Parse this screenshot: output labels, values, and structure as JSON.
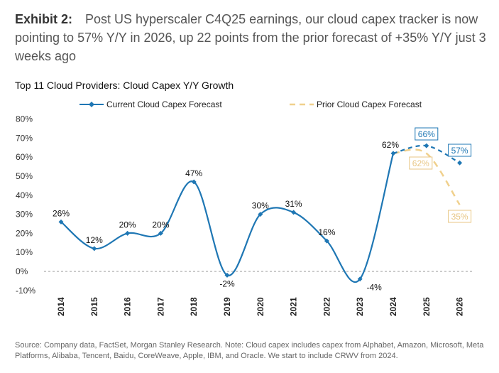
{
  "exhibit": {
    "label": "Exhibit 2:",
    "text": "Post US hyperscaler C4Q25 earnings, our cloud capex tracker is now pointing to 57% Y/Y in 2026, up 22 points from the prior forecast of +35% Y/Y just 3 weeks ago"
  },
  "source_note": "Source: Company data, FactSet, Morgan Stanley Research. Note: Cloud capex includes capex from Alphabet, Amazon, Microsoft, Meta Platforms, Alibaba, Tencent, Baidu, CoreWeave, Apple, IBM, and Oracle. We start to include CRWV from 2024.",
  "chart_data": {
    "type": "line",
    "title": "Top 11 Cloud Providers: Cloud Capex Y/Y Growth",
    "xlabel": "",
    "ylabel": "",
    "categories": [
      "2014",
      "2015",
      "2016",
      "2017",
      "2018",
      "2019",
      "2020",
      "2021",
      "2022",
      "2023",
      "2024",
      "2025",
      "2026"
    ],
    "y_ticks": [
      "-10%",
      "0%",
      "10%",
      "20%",
      "30%",
      "40%",
      "50%",
      "60%",
      "70%",
      "80%"
    ],
    "ylim": [
      -10,
      80
    ],
    "grid": false,
    "zero_line": "dashed",
    "legend_position": "top",
    "series": [
      {
        "name": "Current Cloud Capex Forecast",
        "color": "#1f77b4",
        "values": [
          26,
          12,
          20,
          20,
          47,
          -2,
          30,
          31,
          16,
          -4,
          62,
          66,
          57
        ],
        "labels": [
          "26%",
          "12%",
          "20%",
          "20%",
          "47%",
          "-2%",
          "30%",
          "31%",
          "16%",
          "-4%",
          "62%",
          "66%",
          "57%"
        ],
        "forecast_from": "2024",
        "boxed_labels": [
          "66%",
          "57%"
        ]
      },
      {
        "name": "Prior Cloud Capex Forecast",
        "color": "#f0d08c",
        "values": [
          null,
          null,
          null,
          null,
          null,
          null,
          null,
          null,
          null,
          null,
          62,
          62,
          35
        ],
        "labels": [
          "62%",
          "35%"
        ],
        "boxed_labels": [
          "62%",
          "35%"
        ]
      }
    ]
  }
}
